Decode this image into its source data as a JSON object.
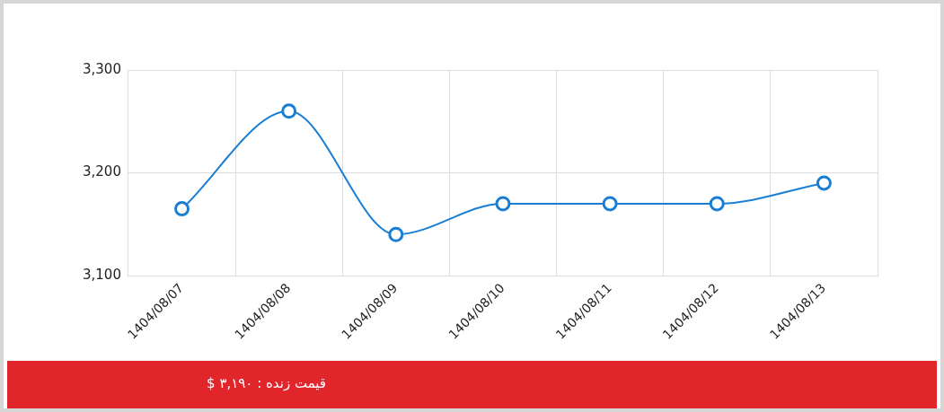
{
  "chart_data": {
    "type": "line",
    "categories": [
      "1404/08/07",
      "1404/08/08",
      "1404/08/09",
      "1404/08/10",
      "1404/08/11",
      "1404/08/12",
      "1404/08/13"
    ],
    "series": [
      {
        "color": "#1a7fd4",
        "values": [
          3165,
          3260,
          3140,
          3170,
          3170,
          3170,
          3190
        ]
      }
    ],
    "ylim": [
      3100,
      3300
    ],
    "yticks": [
      {
        "value": 3100,
        "label": "3,100"
      },
      {
        "value": 3200,
        "label": "3,200"
      },
      {
        "value": 3300,
        "label": "3,300"
      }
    ],
    "grid": true,
    "legend": false,
    "marker": "circle",
    "line_style": "solid",
    "annotations": [
      "قیمت زنده : ۳,۱۹۰ $"
    ]
  }
}
